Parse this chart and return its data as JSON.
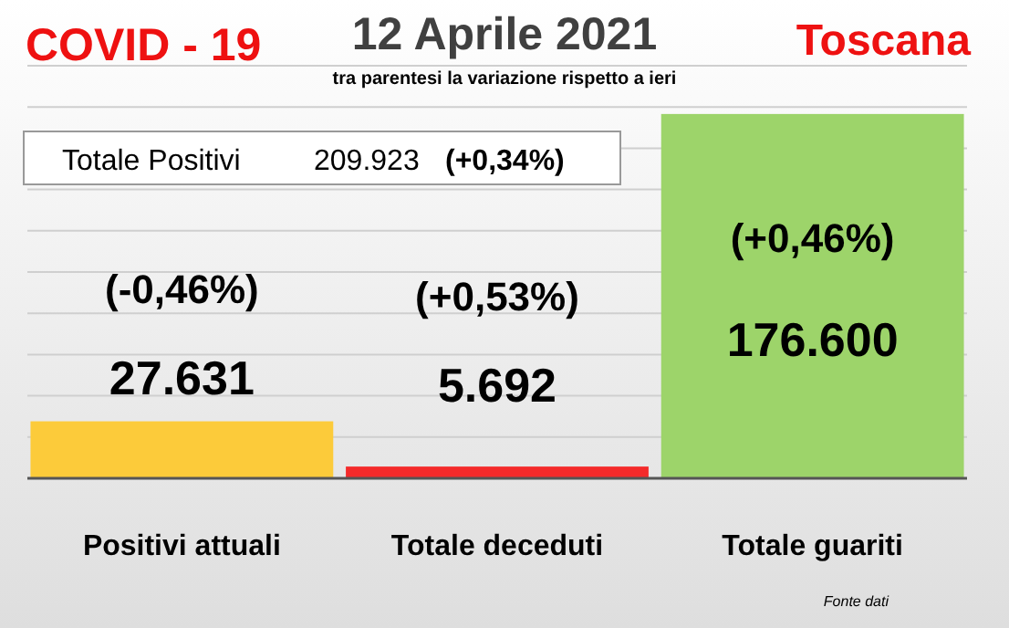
{
  "chart_data": {
    "type": "bar",
    "title": "12 Aprile 2021",
    "subtitle": "tra parentesi la variazione rispetto a ieri",
    "categories": [
      "Positivi attuali",
      "Totale deceduti",
      "Totale guariti"
    ],
    "values": [
      27631,
      5692,
      176600
    ],
    "colors": [
      "#fccb3a",
      "#f42a2a",
      "#9dd46a"
    ],
    "value_labels": [
      "27.631",
      "5.692",
      "176.600"
    ],
    "ylim": [
      0,
      200000
    ],
    "yticks": [
      {
        "value": 0,
        "label": null
      },
      {
        "value": 20000,
        "label": null
      },
      {
        "value": 40000,
        "label": null
      },
      {
        "value": 60000,
        "label": null
      },
      {
        "value": 80000,
        "label": null
      },
      {
        "value": 100000,
        "label": null
      },
      {
        "value": 120000,
        "label": null
      },
      {
        "value": 140000,
        "label": null
      },
      {
        "value": 160000,
        "label": null
      },
      {
        "value": 180000,
        "label": null
      },
      {
        "value": 200000,
        "label": null
      }
    ],
    "tick_labels": "x",
    "grid": "y",
    "annotations": [
      "COVID - 19",
      "Toscana",
      "Totale Positivi",
      "209.923",
      "(+0,34%)",
      "Fonte dati",
      "(-0,46%)",
      "(+0,53%)",
      "(+0,46%)"
    ]
  }
}
